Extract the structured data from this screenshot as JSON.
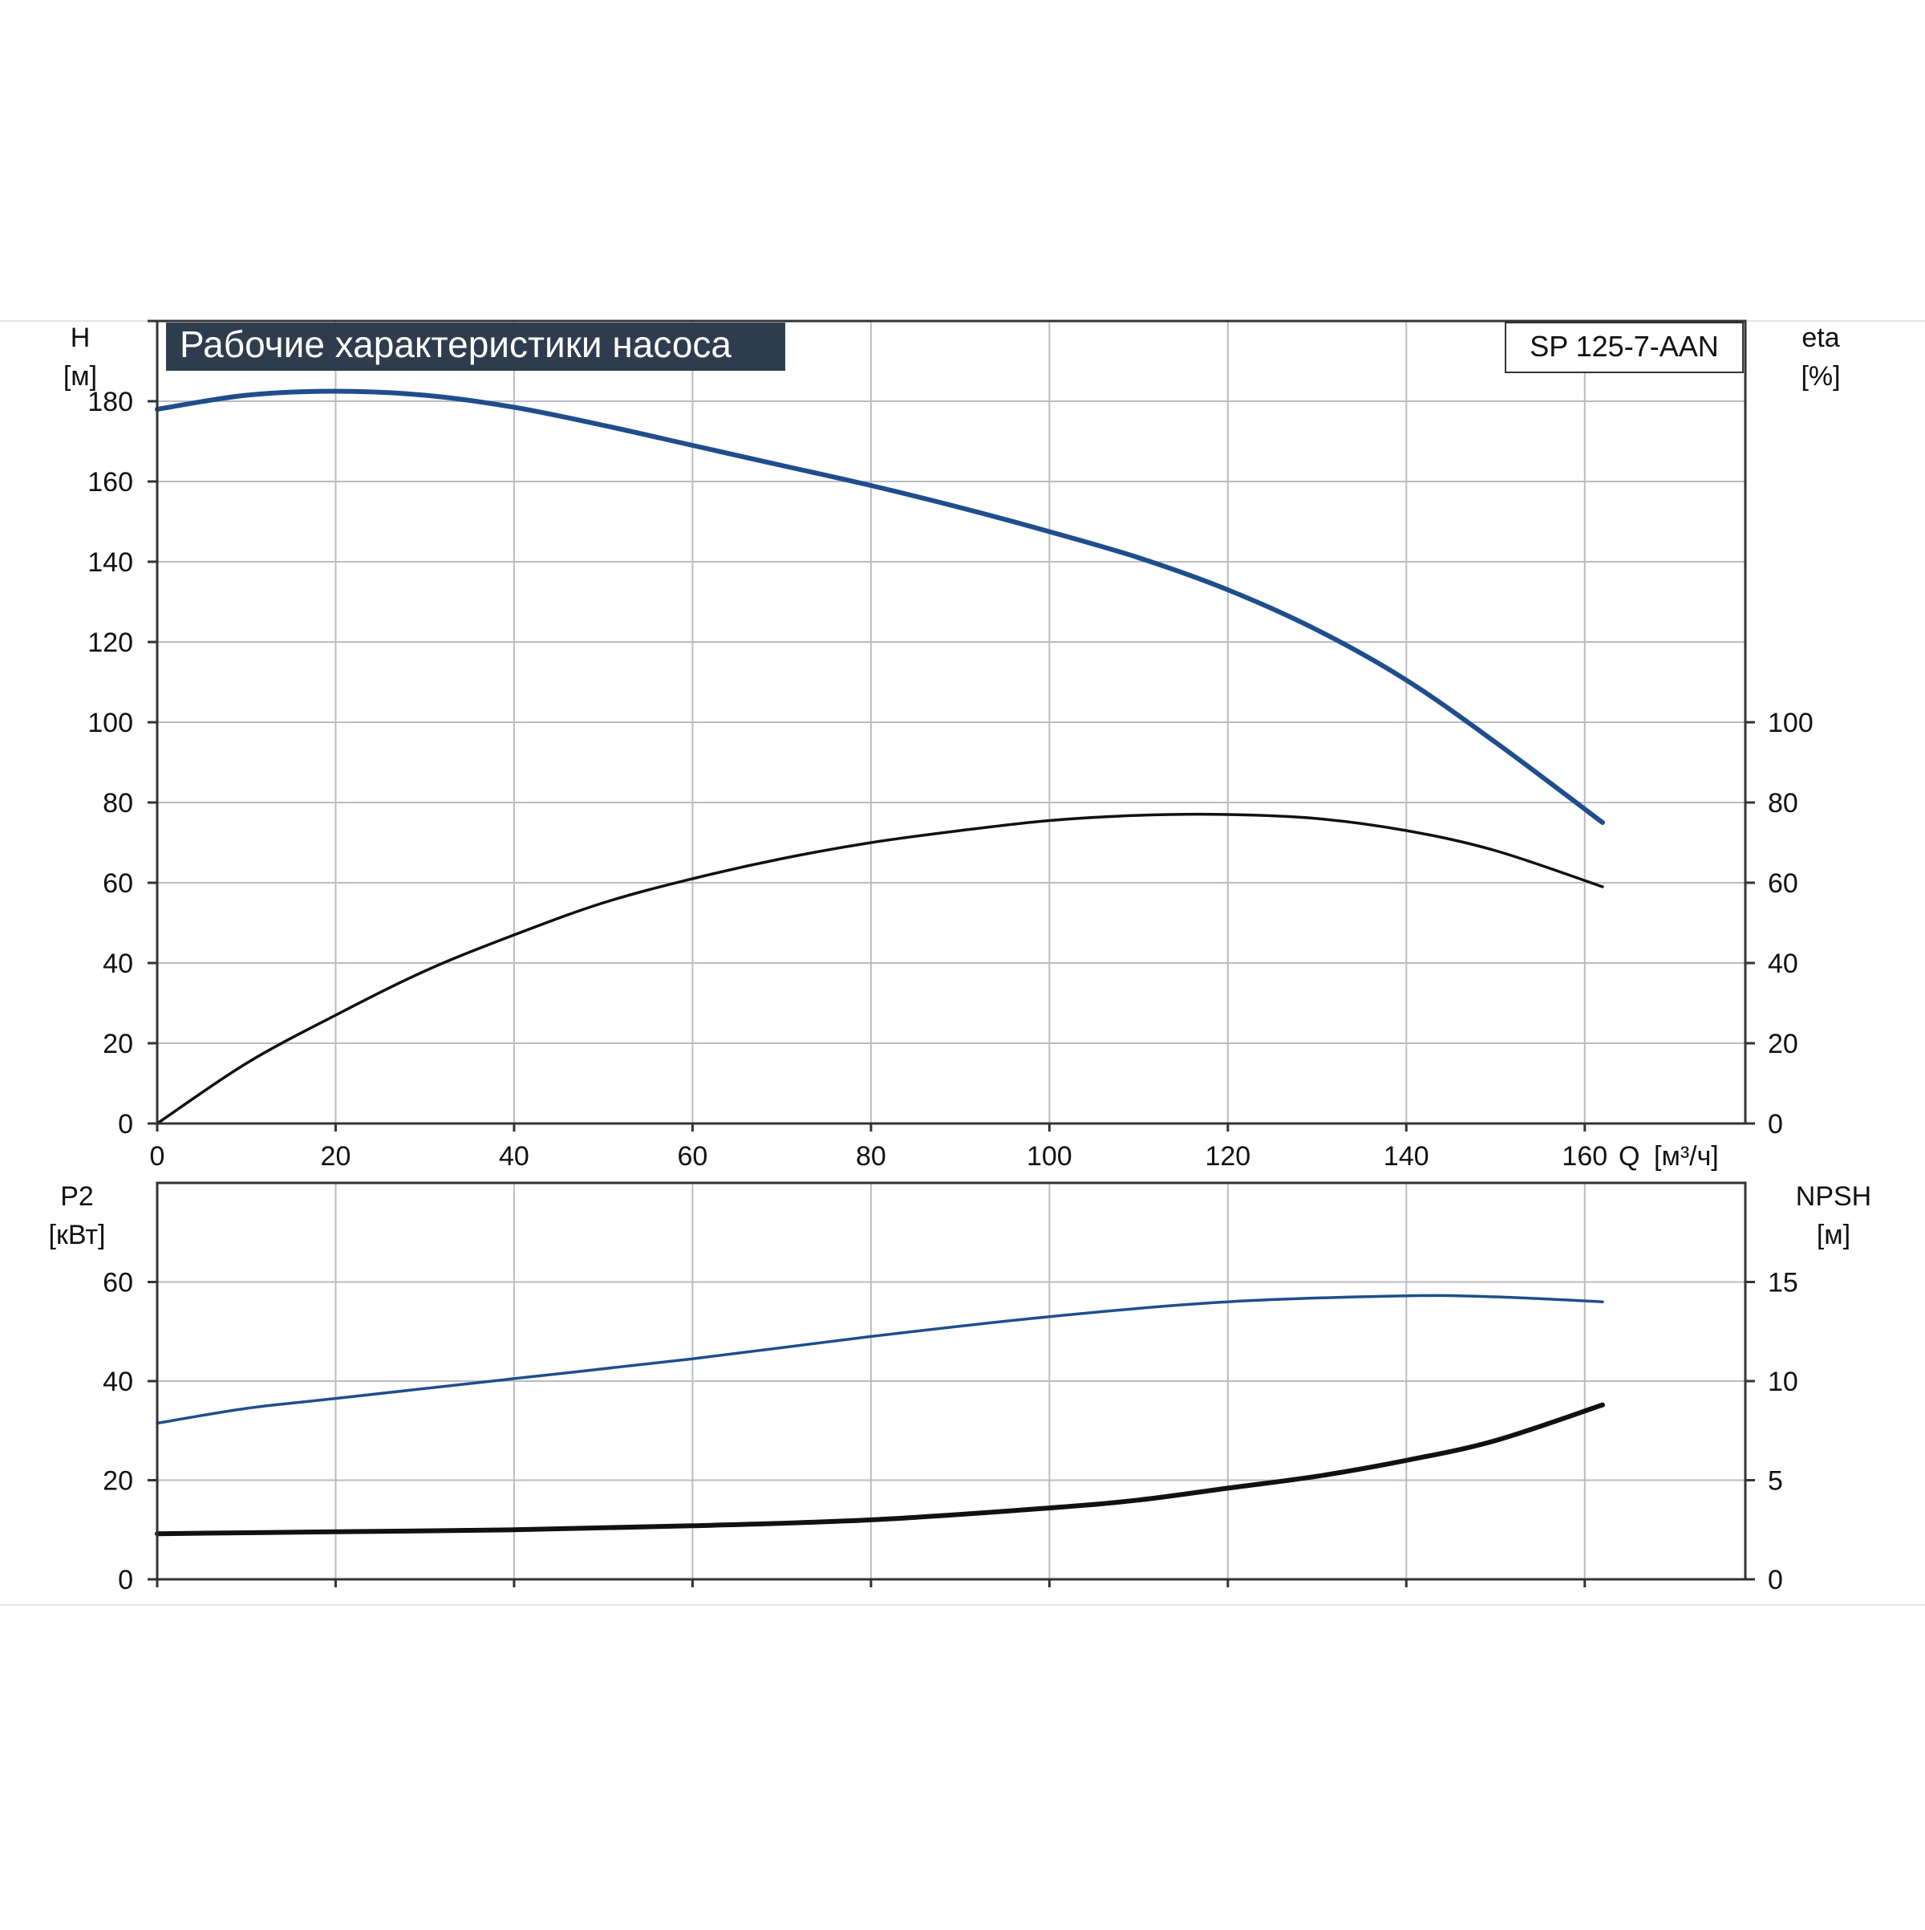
{
  "chart_data": [
    {
      "type": "line",
      "title": "Рабочие характеристики насоса",
      "model": "SP 125-7-AAN",
      "x_axis": {
        "label": "Q",
        "unit": "[м³/ч]",
        "range": [
          0,
          178
        ],
        "ticks": [
          0,
          20,
          40,
          60,
          80,
          100,
          120,
          140,
          160
        ]
      },
      "y_left": {
        "label": "H",
        "unit": "[м]",
        "range": [
          0,
          200
        ],
        "ticks": [
          0,
          20,
          40,
          60,
          80,
          100,
          120,
          140,
          160,
          180
        ]
      },
      "y_right": {
        "label": "eta",
        "unit": "[%]",
        "range": [
          0,
          200
        ],
        "ticks": [
          0,
          20,
          40,
          60,
          80,
          100
        ]
      },
      "grid": true,
      "series": [
        {
          "axis": "left",
          "color": "#1f4e8c",
          "x": [
            0,
            10,
            20,
            30,
            40,
            50,
            60,
            70,
            80,
            90,
            100,
            110,
            120,
            130,
            140,
            150,
            162
          ],
          "y": [
            178,
            181.5,
            182.5,
            181.5,
            178.5,
            174,
            169,
            164,
            159,
            153.5,
            147.5,
            141,
            133,
            123,
            110.5,
            95,
            75
          ]
        },
        {
          "axis": "right",
          "color": "#111111",
          "x": [
            0,
            10,
            20,
            30,
            40,
            50,
            60,
            70,
            80,
            90,
            100,
            110,
            120,
            130,
            140,
            150,
            162
          ],
          "y": [
            0,
            15,
            27,
            38,
            47,
            55,
            61,
            66,
            70,
            73,
            75.5,
            76.8,
            77,
            76,
            73,
            68,
            59
          ]
        }
      ]
    },
    {
      "type": "line",
      "x_axis": {
        "range": [
          0,
          178
        ],
        "ticks": [
          0,
          20,
          40,
          60,
          80,
          100,
          120,
          140,
          160
        ]
      },
      "y_left": {
        "label": "P2",
        "unit": "[кВт]",
        "range": [
          0,
          80
        ],
        "ticks": [
          0,
          20,
          40,
          60
        ]
      },
      "y_right": {
        "label": "NPSH",
        "unit": "[м]",
        "range": [
          0,
          20
        ],
        "ticks": [
          0,
          5,
          10,
          15
        ]
      },
      "grid": true,
      "series": [
        {
          "axis": "left",
          "color": "#1f4e8c",
          "x": [
            0,
            10,
            20,
            40,
            60,
            80,
            100,
            120,
            140,
            150,
            162
          ],
          "y": [
            31.5,
            34.5,
            36.5,
            40.5,
            44.5,
            49,
            53,
            56,
            57.2,
            57,
            56
          ]
        },
        {
          "axis": "right",
          "color": "#111111",
          "x": [
            0,
            10,
            20,
            40,
            60,
            80,
            100,
            110,
            120,
            130,
            140,
            150,
            162
          ],
          "y": [
            2.3,
            2.35,
            2.4,
            2.5,
            2.7,
            3.0,
            3.6,
            4.0,
            4.6,
            5.2,
            6.0,
            7.0,
            8.8
          ]
        }
      ]
    }
  ]
}
